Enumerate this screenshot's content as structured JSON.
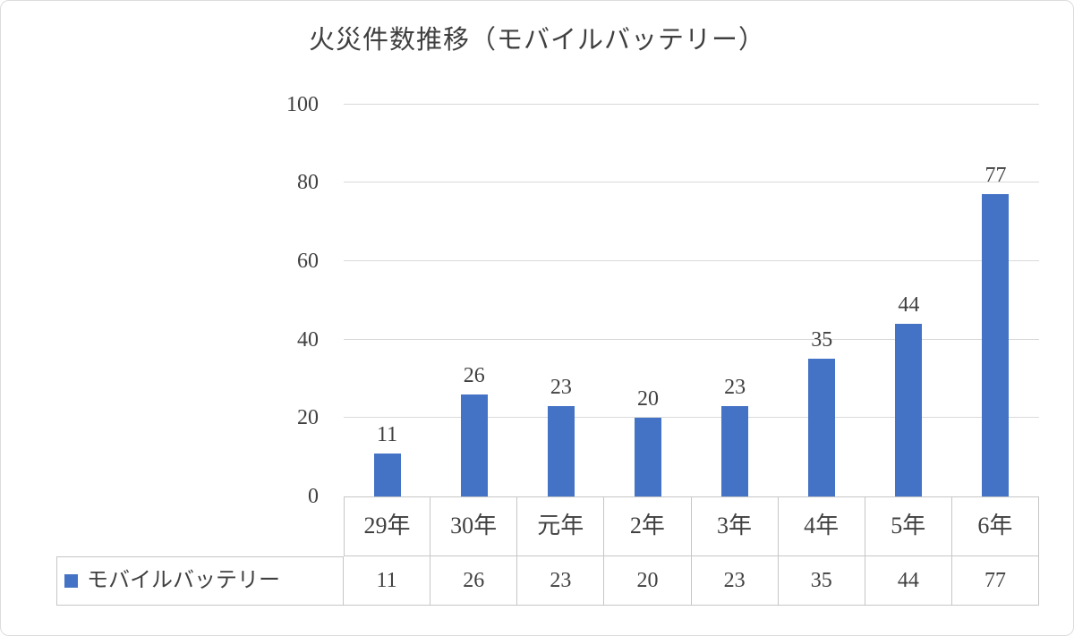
{
  "chart_data": {
    "type": "bar",
    "title": "火災件数推移（モバイルバッテリー）",
    "categories": [
      "29年",
      "30年",
      "元年",
      "2年",
      "3年",
      "4年",
      "5年",
      "6年"
    ],
    "series": [
      {
        "name": "モバイルバッテリー",
        "values": [
          11,
          26,
          23,
          20,
          23,
          35,
          44,
          77
        ]
      }
    ],
    "ylim": [
      0,
      100
    ],
    "yticks": [
      0,
      20,
      40,
      60,
      80,
      100
    ],
    "grid": true,
    "data_labels": true,
    "legend_position": "table-left",
    "bar_color": "#4472C4",
    "gridline_color": "#d9d9d9",
    "table_border_color": "#c6c6c6",
    "text_color": "#404040"
  }
}
